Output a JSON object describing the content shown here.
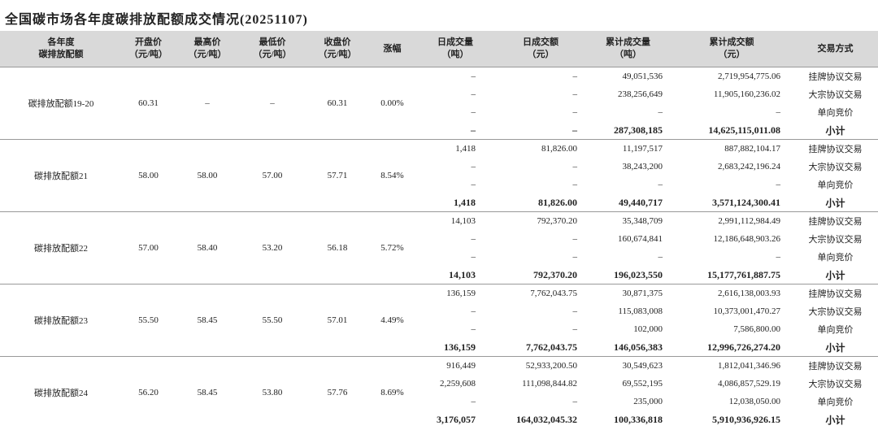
{
  "title": "全国碳市场各年度碳排放配额成交情况(20251107)",
  "headers": [
    [
      "各年度",
      "碳排放配额"
    ],
    [
      "开盘价",
      "（元/吨）"
    ],
    [
      "最高价",
      "（元/吨）"
    ],
    [
      "最低价",
      "（元/吨）"
    ],
    [
      "收盘价",
      "（元/吨）"
    ],
    [
      "涨幅"
    ],
    [
      "日成交量",
      "（吨）"
    ],
    [
      "日成交额",
      "（元）"
    ],
    [
      "累计成交量",
      "（吨）"
    ],
    [
      "累计成交额",
      "（元）"
    ],
    [
      "交易方式"
    ]
  ],
  "groups": [
    {
      "name": "碳排放配额19-20",
      "open": "60.31",
      "high": "–",
      "low": "–",
      "close": "60.31",
      "change": "0.00%",
      "rows": [
        [
          "–",
          "–",
          "49,051,536",
          "2,719,954,775.06",
          "挂牌协议交易"
        ],
        [
          "–",
          "–",
          "238,256,649",
          "11,905,160,236.02",
          "大宗协议交易"
        ],
        [
          "–",
          "–",
          "–",
          "–",
          "单向竞价"
        ],
        [
          "–",
          "–",
          "287,308,185",
          "14,625,115,011.08",
          "小计"
        ]
      ]
    },
    {
      "name": "碳排放配额21",
      "open": "58.00",
      "high": "58.00",
      "low": "57.00",
      "close": "57.71",
      "change": "8.54%",
      "rows": [
        [
          "1,418",
          "81,826.00",
          "11,197,517",
          "887,882,104.17",
          "挂牌协议交易"
        ],
        [
          "–",
          "–",
          "38,243,200",
          "2,683,242,196.24",
          "大宗协议交易"
        ],
        [
          "–",
          "–",
          "–",
          "–",
          "单向竞价"
        ],
        [
          "1,418",
          "81,826.00",
          "49,440,717",
          "3,571,124,300.41",
          "小计"
        ]
      ]
    },
    {
      "name": "碳排放配额22",
      "open": "57.00",
      "high": "58.40",
      "low": "53.20",
      "close": "56.18",
      "change": "5.72%",
      "rows": [
        [
          "14,103",
          "792,370.20",
          "35,348,709",
          "2,991,112,984.49",
          "挂牌协议交易"
        ],
        [
          "–",
          "–",
          "160,674,841",
          "12,186,648,903.26",
          "大宗协议交易"
        ],
        [
          "–",
          "–",
          "–",
          "–",
          "单向竞价"
        ],
        [
          "14,103",
          "792,370.20",
          "196,023,550",
          "15,177,761,887.75",
          "小计"
        ]
      ]
    },
    {
      "name": "碳排放配额23",
      "open": "55.50",
      "high": "58.45",
      "low": "55.50",
      "close": "57.01",
      "change": "4.49%",
      "rows": [
        [
          "136,159",
          "7,762,043.75",
          "30,871,375",
          "2,616,138,003.93",
          "挂牌协议交易"
        ],
        [
          "–",
          "–",
          "115,083,008",
          "10,373,001,470.27",
          "大宗协议交易"
        ],
        [
          "–",
          "–",
          "102,000",
          "7,586,800.00",
          "单向竞价"
        ],
        [
          "136,159",
          "7,762,043.75",
          "146,056,383",
          "12,996,726,274.20",
          "小计"
        ]
      ]
    },
    {
      "name": "碳排放配额24",
      "open": "56.20",
      "high": "58.45",
      "low": "53.80",
      "close": "57.76",
      "change": "8.69%",
      "rows": [
        [
          "916,449",
          "52,933,200.50",
          "30,549,623",
          "1,812,041,346.96",
          "挂牌协议交易"
        ],
        [
          "2,259,608",
          "111,098,844.82",
          "69,552,195",
          "4,086,857,529.19",
          "大宗协议交易"
        ],
        [
          "–",
          "–",
          "235,000",
          "12,038,050.00",
          "单向竞价"
        ],
        [
          "3,176,057",
          "164,032,045.32",
          "100,336,818",
          "5,910,936,926.15",
          "小计"
        ]
      ]
    }
  ]
}
